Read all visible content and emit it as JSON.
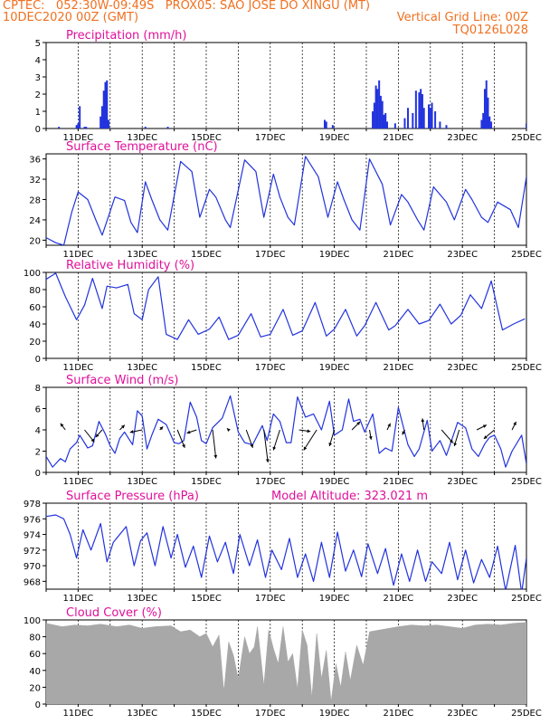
{
  "header": {
    "line1": "CPTEC:   052:30W-09:49S   PROX05: SAO JOSE DO XINGU (MT)",
    "line2_left": "10DEC2020 00Z (GMT)",
    "line2_right": "Vertical Grid Line: 00Z",
    "line3_right": "TQ0126L028"
  },
  "colors": {
    "header": "#f07020",
    "titles": "#e0109a",
    "series": "#2233dd",
    "cloud": "#a8a8a8"
  },
  "x_tick_labels": [
    "11DEC",
    "13DEC",
    "15DEC",
    "17DEC",
    "19DEC",
    "21DEC",
    "23DEC",
    "25DEC"
  ],
  "chart_data": [
    {
      "id": "precip",
      "type": "bar",
      "title": "Precipitation (mm/h)",
      "x_range_days": [
        10,
        25
      ],
      "ylim": [
        0,
        5
      ],
      "yticks": [
        0,
        1,
        2,
        3,
        4,
        5
      ],
      "grid": "vertical dashed at 00Z",
      "x_labels": [
        "11DEC",
        "13DEC",
        "15DEC",
        "17DEC",
        "19DEC",
        "21DEC",
        "23DEC",
        "25DEC"
      ],
      "x": [
        10.4,
        10.95,
        11.0,
        11.05,
        11.2,
        11.25,
        11.7,
        11.75,
        11.8,
        11.85,
        11.9,
        11.95,
        13.1,
        13.8,
        18.7,
        18.75,
        18.95,
        20.2,
        20.25,
        20.3,
        20.35,
        20.4,
        20.45,
        20.5,
        20.55,
        20.6,
        20.65,
        20.9,
        21.2,
        21.3,
        21.45,
        21.55,
        21.65,
        21.7,
        21.75,
        21.8,
        21.95,
        22.0,
        22.05,
        22.15,
        22.3,
        22.5,
        23.6,
        23.65,
        23.7,
        23.75,
        23.8,
        23.85,
        23.9,
        25.0
      ],
      "values": [
        0.1,
        0.2,
        0.3,
        1.3,
        0.1,
        0.1,
        0.7,
        1.3,
        2.2,
        2.7,
        2.8,
        0.5,
        0.1,
        0.1,
        0.5,
        0.4,
        0.2,
        1.0,
        1.5,
        2.5,
        2.3,
        2.8,
        1.9,
        1.6,
        0.8,
        0.9,
        0.4,
        0.3,
        0.6,
        1.2,
        0.9,
        2.2,
        2.1,
        2.3,
        2.0,
        1.2,
        1.4,
        1.2,
        1.5,
        1.0,
        0.4,
        0.2,
        0.5,
        0.9,
        2.3,
        2.8,
        1.8,
        0.7,
        0.4,
        0.3
      ]
    },
    {
      "id": "temp",
      "type": "line",
      "title": "Surface Temperature (nC)",
      "x_range_days": [
        10,
        25
      ],
      "ylim": [
        19,
        37
      ],
      "yticks": [
        20,
        24,
        28,
        32,
        36
      ],
      "x_labels": [
        "11DEC",
        "13DEC",
        "15DEC",
        "17DEC",
        "19DEC",
        "21DEC",
        "23DEC",
        "25DEC"
      ],
      "series": [
        {
          "x": [
            10.0,
            10.3,
            10.55,
            10.8,
            11.0,
            11.3,
            11.55,
            11.75,
            12.15,
            12.45,
            12.65,
            12.85,
            13.1,
            13.3,
            13.55,
            13.8,
            14.2,
            14.55,
            14.8,
            15.1,
            15.3,
            15.6,
            15.75,
            16.2,
            16.55,
            16.8,
            17.1,
            17.3,
            17.55,
            17.75,
            18.1,
            18.5,
            18.8,
            19.1,
            19.3,
            19.55,
            19.8,
            20.1,
            20.5,
            20.75,
            21.1,
            21.3,
            21.6,
            21.8,
            22.1,
            22.5,
            22.75,
            23.1,
            23.3,
            23.6,
            23.8,
            24.1,
            24.5,
            24.75,
            25.0
          ],
          "y": [
            20.5,
            19.5,
            19.0,
            25.5,
            29.5,
            28.0,
            24.0,
            21.0,
            28.5,
            27.8,
            23.5,
            21.5,
            31.5,
            28.0,
            24.0,
            22.0,
            35.5,
            33.5,
            24.5,
            30.0,
            28.5,
            24.0,
            22.5,
            35.8,
            33.5,
            24.5,
            33.0,
            28.5,
            24.5,
            23.0,
            36.5,
            32.5,
            24.5,
            31.5,
            28.0,
            24.0,
            22.0,
            36.0,
            31.0,
            23.0,
            29.0,
            27.5,
            24.0,
            22.0,
            30.5,
            27.5,
            24.0,
            30.0,
            28.0,
            24.5,
            23.5,
            27.5,
            26.0,
            22.5,
            32.5
          ]
        }
      ]
    },
    {
      "id": "rh",
      "type": "line",
      "title": "Relative Humidity (%)",
      "x_range_days": [
        10,
        25
      ],
      "ylim": [
        0,
        100
      ],
      "yticks": [
        0,
        20,
        40,
        60,
        80,
        100
      ],
      "x_labels": [
        "11DEC",
        "13DEC",
        "15DEC",
        "17DEC",
        "19DEC",
        "21DEC",
        "23DEC",
        "25DEC"
      ],
      "series": [
        {
          "x": [
            10.0,
            10.3,
            10.6,
            10.95,
            11.2,
            11.45,
            11.75,
            11.9,
            12.2,
            12.55,
            12.75,
            13.0,
            13.2,
            13.5,
            13.75,
            14.1,
            14.45,
            14.75,
            15.1,
            15.4,
            15.7,
            16.0,
            16.4,
            16.7,
            17.0,
            17.4,
            17.7,
            18.0,
            18.4,
            18.75,
            19.0,
            19.35,
            19.7,
            19.95,
            20.3,
            20.7,
            20.9,
            21.3,
            21.65,
            21.95,
            22.3,
            22.65,
            22.95,
            23.25,
            23.6,
            23.9,
            24.25,
            24.6,
            24.95
          ],
          "y": [
            92,
            99,
            72,
            45,
            62,
            93,
            58,
            84,
            82,
            86,
            52,
            45,
            80,
            95,
            28,
            22,
            45,
            28,
            34,
            48,
            22,
            27,
            52,
            25,
            28,
            57,
            27,
            32,
            65,
            26,
            34,
            57,
            26,
            38,
            65,
            33,
            38,
            57,
            40,
            44,
            63,
            40,
            50,
            74,
            58,
            90,
            33,
            40,
            46
          ]
        }
      ]
    },
    {
      "id": "wind",
      "type": "line",
      "title": "Surface Wind (m/s)",
      "x_range_days": [
        10,
        25
      ],
      "ylim": [
        0,
        8
      ],
      "yticks": [
        0,
        2,
        4,
        6,
        8
      ],
      "x_labels": [
        "11DEC",
        "13DEC",
        "15DEC",
        "17DEC",
        "19DEC",
        "21DEC",
        "23DEC",
        "25DEC"
      ],
      "series": [
        {
          "x": [
            10.0,
            10.2,
            10.45,
            10.6,
            10.75,
            10.95,
            11.05,
            11.3,
            11.45,
            11.65,
            11.85,
            12.0,
            12.15,
            12.3,
            12.45,
            12.7,
            12.85,
            13.0,
            13.15,
            13.3,
            13.5,
            13.75,
            14.0,
            14.15,
            14.3,
            14.5,
            14.7,
            14.85,
            15.0,
            15.2,
            15.5,
            15.75,
            16.0,
            16.2,
            16.45,
            16.75,
            16.9,
            17.1,
            17.3,
            17.5,
            17.65,
            17.85,
            18.1,
            18.35,
            18.6,
            18.85,
            19.0,
            19.25,
            19.45,
            19.6,
            19.8,
            19.95,
            20.2,
            20.4,
            20.6,
            20.8,
            21.0,
            21.3,
            21.5,
            21.65,
            21.9,
            22.05,
            22.3,
            22.5,
            22.65,
            22.85,
            23.1,
            23.3,
            23.5,
            23.7,
            23.85,
            24.0,
            24.2,
            24.35,
            24.55,
            24.85,
            25.0
          ],
          "y": [
            1.5,
            0.5,
            1.3,
            1.0,
            2.2,
            2.8,
            3.5,
            2.3,
            2.5,
            4.8,
            3.6,
            2.5,
            1.8,
            3.2,
            3.8,
            2.6,
            5.8,
            5.3,
            2.2,
            3.5,
            5.0,
            4.5,
            2.8,
            2.7,
            3.0,
            6.6,
            5.2,
            3.0,
            2.7,
            4.2,
            5.1,
            7.2,
            3.8,
            2.8,
            2.6,
            4.4,
            3.0,
            5.5,
            4.8,
            2.8,
            2.8,
            7.1,
            5.2,
            5.5,
            4.0,
            6.7,
            3.5,
            4.0,
            6.9,
            4.8,
            5.0,
            3.8,
            5.5,
            1.8,
            2.3,
            2.0,
            6.1,
            2.6,
            1.5,
            2.2,
            4.9,
            2.0,
            3.0,
            1.6,
            2.9,
            4.7,
            4.2,
            2.2,
            1.5,
            2.7,
            3.3,
            3.5,
            2.2,
            0.5,
            2.0,
            3.5,
            0.8
          ]
        }
      ],
      "vectors_x": [
        10.6,
        11.2,
        11.75,
        12.3,
        13.0,
        13.55,
        14.1,
        14.7,
        15.2,
        15.7,
        16.25,
        16.8,
        17.3,
        17.9,
        18.45,
        19.0,
        19.55,
        20.1,
        20.65,
        21.2,
        21.8,
        22.35,
        22.9,
        23.45,
        24.0,
        24.55
      ],
      "vectors_u": [
        -0.6,
        1.2,
        -0.8,
        0.6,
        -1.5,
        0.4,
        0.9,
        -1.2,
        0.4,
        -0.2,
        0.8,
        0.5,
        -0.8,
        1.4,
        -1.6,
        -0.6,
        1.0,
        0.2,
        0.4,
        -0.3,
        -0.2,
        1.4,
        -0.6,
        1.2,
        -1.3,
        0.5
      ],
      "vectors_v": [
        0.8,
        -1.5,
        -0.9,
        0.6,
        -0.3,
        0.4,
        -2.2,
        -0.4,
        -3.5,
        0.2,
        -2.2,
        -4.0,
        -2.5,
        -0.2,
        -2.5,
        -2.0,
        1.0,
        -1.2,
        0.8,
        -0.6,
        1.4,
        -1.6,
        -2.0,
        0.6,
        -1.1,
        1.0
      ]
    },
    {
      "id": "pres",
      "type": "line",
      "title": "Surface Pressure (hPa)",
      "annotation": "Model Altitude: 323.021 m",
      "x_range_days": [
        10,
        25
      ],
      "ylim": [
        967,
        978
      ],
      "yticks": [
        968,
        970,
        972,
        974,
        976,
        978
      ],
      "x_labels": [
        "11DEC",
        "13DEC",
        "15DEC",
        "17DEC",
        "19DEC",
        "21DEC",
        "23DEC",
        "25DEC"
      ],
      "series": [
        {
          "x": [
            10.0,
            10.3,
            10.55,
            10.75,
            10.95,
            11.15,
            11.4,
            11.7,
            11.9,
            12.1,
            12.5,
            12.75,
            12.95,
            13.15,
            13.4,
            13.65,
            13.9,
            14.1,
            14.35,
            14.6,
            14.85,
            15.1,
            15.35,
            15.6,
            15.85,
            16.05,
            16.35,
            16.6,
            16.85,
            17.05,
            17.35,
            17.6,
            17.85,
            18.1,
            18.35,
            18.6,
            18.85,
            19.1,
            19.35,
            19.6,
            19.85,
            20.05,
            20.35,
            20.6,
            20.85,
            21.1,
            21.35,
            21.6,
            21.85,
            22.05,
            22.35,
            22.6,
            22.85,
            23.1,
            23.35,
            23.6,
            23.85,
            24.1,
            24.35,
            24.65,
            24.85,
            25.0
          ],
          "y": [
            976.3,
            976.5,
            976.0,
            974.0,
            971.0,
            974.6,
            972.0,
            975.4,
            970.5,
            973.0,
            975.0,
            970.0,
            973.2,
            974.2,
            970.0,
            975.0,
            971.0,
            974.0,
            969.8,
            972.5,
            968.5,
            973.8,
            970.5,
            973.0,
            969.0,
            974.0,
            970.0,
            973.3,
            968.5,
            972.0,
            969.5,
            973.5,
            968.5,
            971.5,
            968.0,
            973.0,
            968.5,
            974.3,
            969.3,
            972.0,
            968.6,
            972.8,
            969.0,
            972.2,
            967.5,
            971.5,
            968.0,
            972.0,
            968.0,
            970.5,
            969.0,
            973.0,
            968.2,
            972.0,
            967.8,
            970.8,
            968.5,
            972.5,
            966.8,
            972.6,
            966.5,
            971.0
          ]
        }
      ]
    },
    {
      "id": "cloud",
      "type": "area",
      "title": "Cloud Cover (%)",
      "x_range_days": [
        10,
        25
      ],
      "ylim": [
        0,
        100
      ],
      "yticks": [
        0,
        20,
        40,
        60,
        80,
        100
      ],
      "x_labels": [
        "11DEC",
        "13DEC",
        "15DEC",
        "17DEC",
        "19DEC",
        "21DEC",
        "23DEC",
        "25DEC"
      ],
      "series": [
        {
          "x": [
            10.0,
            10.5,
            10.9,
            11.3,
            11.7,
            12.2,
            12.6,
            13.0,
            13.4,
            13.9,
            14.2,
            14.5,
            14.8,
            15.0,
            15.2,
            15.4,
            15.55,
            15.7,
            15.85,
            16.0,
            16.2,
            16.35,
            16.5,
            16.6,
            16.8,
            16.95,
            17.1,
            17.25,
            17.4,
            17.55,
            17.7,
            17.85,
            18.0,
            18.15,
            18.3,
            18.45,
            18.6,
            18.75,
            18.9,
            19.05,
            19.2,
            19.35,
            19.5,
            19.7,
            19.9,
            20.1,
            20.4,
            20.7,
            21.0,
            21.4,
            21.8,
            22.2,
            22.6,
            23.0,
            23.4,
            23.8,
            24.2,
            24.6,
            25.0
          ],
          "y": [
            96,
            92,
            94,
            93,
            95,
            92,
            94,
            90,
            92,
            93,
            86,
            88,
            80,
            84,
            68,
            82,
            15,
            74,
            58,
            30,
            80,
            60,
            68,
            92,
            22,
            88,
            66,
            48,
            92,
            50,
            60,
            18,
            88,
            70,
            8,
            84,
            30,
            64,
            3,
            48,
            20,
            62,
            28,
            70,
            46,
            86,
            88,
            90,
            92,
            94,
            93,
            94,
            92,
            90,
            94,
            95,
            94,
            96,
            97
          ]
        }
      ]
    }
  ]
}
